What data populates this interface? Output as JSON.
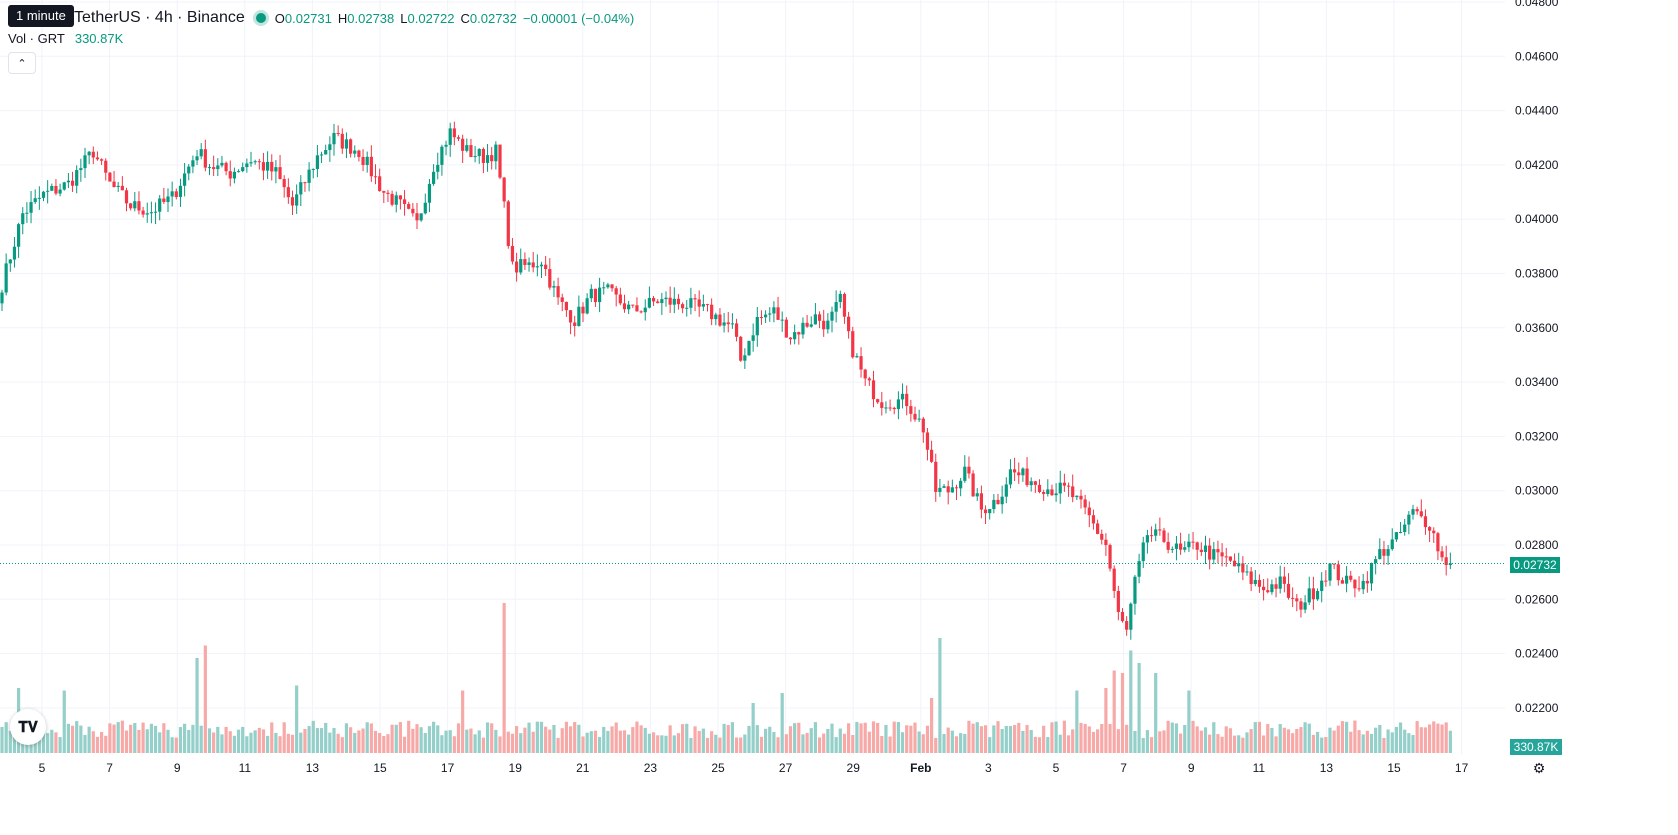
{
  "legend": {
    "tooltip": "1 minute",
    "symbol_title": "TetherUS · 4h · Binance",
    "open_label": "O",
    "open": "0.02731",
    "high_label": "H",
    "high": "0.02738",
    "low_label": "L",
    "low": "0.02722",
    "close_label": "C",
    "close": "0.02732",
    "change": "−0.00001 (−0.04%)",
    "volume_label": "Vol · GRT",
    "volume_value": "330.87K",
    "collapse_icon": "chevron-up-icon"
  },
  "badges": {
    "last_price": "0.02732",
    "last_volume": "330.87K"
  },
  "colors": {
    "up": "#089981",
    "down": "#f23645",
    "vol_up": "#94cfc9",
    "vol_down": "#f7a9a7",
    "grid": "#f0f3fa",
    "axis_text": "#131722"
  },
  "chart_data": {
    "type": "candlestick",
    "price_axis_ticks": [
      "0.04800",
      "0.04600",
      "0.04400",
      "0.04200",
      "0.04000",
      "0.03800",
      "0.03600",
      "0.03400",
      "0.03200",
      "0.03000",
      "0.02800",
      "0.02600",
      "0.02400",
      "0.02200"
    ],
    "price_range": [
      0.0216,
      0.048
    ],
    "date_axis_ticks": [
      "5",
      "7",
      "9",
      "11",
      "13",
      "15",
      "17",
      "19",
      "21",
      "23",
      "25",
      "27",
      "29",
      "Feb",
      "3",
      "5",
      "7",
      "9",
      "11",
      "13",
      "15",
      "17"
    ],
    "last_price": 0.02732,
    "price_anchors": [
      {
        "bar": 0,
        "price": 0.0376
      },
      {
        "bar": 5,
        "price": 0.0402
      },
      {
        "bar": 10,
        "price": 0.0409
      },
      {
        "bar": 16,
        "price": 0.0413
      },
      {
        "bar": 22,
        "price": 0.0425
      },
      {
        "bar": 26,
        "price": 0.0413
      },
      {
        "bar": 31,
        "price": 0.0405
      },
      {
        "bar": 36,
        "price": 0.0403
      },
      {
        "bar": 41,
        "price": 0.0408
      },
      {
        "bar": 47,
        "price": 0.0425
      },
      {
        "bar": 50,
        "price": 0.042
      },
      {
        "bar": 55,
        "price": 0.0417
      },
      {
        "bar": 60,
        "price": 0.0422
      },
      {
        "bar": 66,
        "price": 0.0417
      },
      {
        "bar": 70,
        "price": 0.0405
      },
      {
        "bar": 76,
        "price": 0.0423
      },
      {
        "bar": 80,
        "price": 0.043
      },
      {
        "bar": 86,
        "price": 0.0425
      },
      {
        "bar": 92,
        "price": 0.041
      },
      {
        "bar": 96,
        "price": 0.0405
      },
      {
        "bar": 100,
        "price": 0.0398
      },
      {
        "bar": 104,
        "price": 0.042
      },
      {
        "bar": 108,
        "price": 0.0432
      },
      {
        "bar": 112,
        "price": 0.0425
      },
      {
        "bar": 116,
        "price": 0.0423
      },
      {
        "bar": 119,
        "price": 0.0425
      },
      {
        "bar": 121,
        "price": 0.0404
      },
      {
        "bar": 123,
        "price": 0.0382
      },
      {
        "bar": 127,
        "price": 0.0383
      },
      {
        "bar": 130,
        "price": 0.0385
      },
      {
        "bar": 134,
        "price": 0.037
      },
      {
        "bar": 138,
        "price": 0.0363
      },
      {
        "bar": 142,
        "price": 0.0372
      },
      {
        "bar": 146,
        "price": 0.0373
      },
      {
        "bar": 152,
        "price": 0.0366
      },
      {
        "bar": 158,
        "price": 0.037
      },
      {
        "bar": 164,
        "price": 0.0369
      },
      {
        "bar": 170,
        "price": 0.0366
      },
      {
        "bar": 176,
        "price": 0.036
      },
      {
        "bar": 178,
        "price": 0.0348
      },
      {
        "bar": 182,
        "price": 0.0363
      },
      {
        "bar": 186,
        "price": 0.0366
      },
      {
        "bar": 190,
        "price": 0.0357
      },
      {
        "bar": 196,
        "price": 0.0364
      },
      {
        "bar": 199,
        "price": 0.0361
      },
      {
        "bar": 202,
        "price": 0.037
      },
      {
        "bar": 204,
        "price": 0.0356
      },
      {
        "bar": 208,
        "price": 0.034
      },
      {
        "bar": 212,
        "price": 0.0333
      },
      {
        "bar": 218,
        "price": 0.0333
      },
      {
        "bar": 222,
        "price": 0.0323
      },
      {
        "bar": 225,
        "price": 0.03
      },
      {
        "bar": 228,
        "price": 0.03
      },
      {
        "bar": 232,
        "price": 0.0307
      },
      {
        "bar": 236,
        "price": 0.0293
      },
      {
        "bar": 240,
        "price": 0.0297
      },
      {
        "bar": 243,
        "price": 0.0307
      },
      {
        "bar": 248,
        "price": 0.0304
      },
      {
        "bar": 252,
        "price": 0.0301
      },
      {
        "bar": 257,
        "price": 0.03
      },
      {
        "bar": 262,
        "price": 0.029
      },
      {
        "bar": 266,
        "price": 0.028
      },
      {
        "bar": 269,
        "price": 0.0254
      },
      {
        "bar": 271,
        "price": 0.0248
      },
      {
        "bar": 273,
        "price": 0.0266
      },
      {
        "bar": 276,
        "price": 0.0284
      },
      {
        "bar": 280,
        "price": 0.0282
      },
      {
        "bar": 284,
        "price": 0.0277
      },
      {
        "bar": 288,
        "price": 0.028
      },
      {
        "bar": 292,
        "price": 0.0276
      },
      {
        "bar": 296,
        "price": 0.0274
      },
      {
        "bar": 300,
        "price": 0.0268
      },
      {
        "bar": 304,
        "price": 0.0264
      },
      {
        "bar": 308,
        "price": 0.0266
      },
      {
        "bar": 312,
        "price": 0.0257
      },
      {
        "bar": 316,
        "price": 0.0263
      },
      {
        "bar": 320,
        "price": 0.0272
      },
      {
        "bar": 324,
        "price": 0.0266
      },
      {
        "bar": 328,
        "price": 0.0266
      },
      {
        "bar": 332,
        "price": 0.0277
      },
      {
        "bar": 336,
        "price": 0.0282
      },
      {
        "bar": 340,
        "price": 0.0292
      },
      {
        "bar": 344,
        "price": 0.0288
      },
      {
        "bar": 347,
        "price": 0.0275
      },
      {
        "bar": 349,
        "price": 0.02732
      }
    ],
    "volume_range": [
      0,
      920000
    ],
    "volume_baseline": 60000,
    "volume_spikes": [
      {
        "bar": 4,
        "value": 260000
      },
      {
        "bar": 15,
        "value": 250000
      },
      {
        "bar": 47,
        "value": 380000
      },
      {
        "bar": 49,
        "value": 430000
      },
      {
        "bar": 71,
        "value": 270000
      },
      {
        "bar": 111,
        "value": 250000
      },
      {
        "bar": 121,
        "value": 600000
      },
      {
        "bar": 181,
        "value": 200000
      },
      {
        "bar": 188,
        "value": 240000
      },
      {
        "bar": 226,
        "value": 460000
      },
      {
        "bar": 224,
        "value": 220000
      },
      {
        "bar": 259,
        "value": 250000
      },
      {
        "bar": 266,
        "value": 260000
      },
      {
        "bar": 268,
        "value": 330000
      },
      {
        "bar": 270,
        "value": 320000
      },
      {
        "bar": 272,
        "value": 410000
      },
      {
        "bar": 274,
        "value": 360000
      },
      {
        "bar": 278,
        "value": 320000
      },
      {
        "bar": 286,
        "value": 250000
      }
    ]
  }
}
